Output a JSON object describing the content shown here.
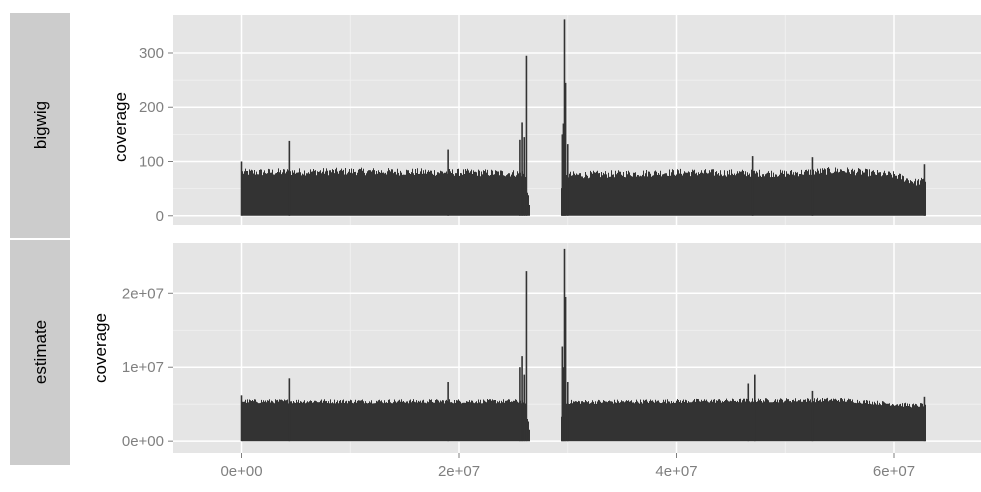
{
  "chart_data": {
    "type": "area",
    "x_ticks": [
      0,
      20000000,
      40000000,
      60000000
    ],
    "x_tick_labels": [
      "0e+00",
      "2e+07",
      "4e+07",
      "6e+07"
    ],
    "xlim": [
      -6300000,
      68000000
    ],
    "grid": true,
    "panels": [
      {
        "strip_label": "bigwig",
        "ylabel": "coverage",
        "ylim": [
          -17,
          370
        ],
        "y_ticks": [
          0,
          100,
          200,
          300
        ],
        "y_tick_labels": [
          "0",
          "100",
          "200",
          "300"
        ],
        "baseline": 80,
        "baseline_noise": 7,
        "shape": [
          {
            "x": 0,
            "y": 80
          },
          {
            "x": 10000000,
            "y": 82
          },
          {
            "x": 20000000,
            "y": 80
          },
          {
            "x": 26000000,
            "y": 78
          },
          {
            "x": 26400000,
            "y": 30
          },
          {
            "x": 26500000,
            "y": 0
          },
          {
            "x": 29300000,
            "y": 0
          },
          {
            "x": 29400000,
            "y": 60
          },
          {
            "x": 30000000,
            "y": 75
          },
          {
            "x": 40000000,
            "y": 80
          },
          {
            "x": 50000000,
            "y": 78
          },
          {
            "x": 55000000,
            "y": 84
          },
          {
            "x": 60000000,
            "y": 75
          },
          {
            "x": 62000000,
            "y": 62
          },
          {
            "x": 62900000,
            "y": 65
          }
        ],
        "spikes": [
          {
            "x": 0,
            "y": 100
          },
          {
            "x": 4400000,
            "y": 138
          },
          {
            "x": 19000000,
            "y": 122
          },
          {
            "x": 25600000,
            "y": 140
          },
          {
            "x": 25800000,
            "y": 172
          },
          {
            "x": 26000000,
            "y": 145
          },
          {
            "x": 26200000,
            "y": 295
          },
          {
            "x": 29500000,
            "y": 150
          },
          {
            "x": 29600000,
            "y": 170
          },
          {
            "x": 29700000,
            "y": 362
          },
          {
            "x": 29800000,
            "y": 245
          },
          {
            "x": 30000000,
            "y": 132
          },
          {
            "x": 47000000,
            "y": 110
          },
          {
            "x": 52500000,
            "y": 108
          },
          {
            "x": 62800000,
            "y": 95
          }
        ]
      },
      {
        "strip_label": "estimate",
        "ylabel": "coverage",
        "ylim": [
          -1600000,
          26800000
        ],
        "y_ticks": [
          0,
          10000000,
          20000000
        ],
        "y_tick_labels": [
          "0e+00",
          "1e+07",
          "2e+07"
        ],
        "baseline": 5400000,
        "baseline_noise": 300000,
        "shape": [
          {
            "x": 0,
            "y": 5400000
          },
          {
            "x": 26000000,
            "y": 5400000
          },
          {
            "x": 26400000,
            "y": 2000000
          },
          {
            "x": 26500000,
            "y": 0
          },
          {
            "x": 29300000,
            "y": 0
          },
          {
            "x": 29400000,
            "y": 4500000
          },
          {
            "x": 30000000,
            "y": 5300000
          },
          {
            "x": 55000000,
            "y": 5600000
          },
          {
            "x": 62000000,
            "y": 4800000
          },
          {
            "x": 62900000,
            "y": 5000000
          }
        ],
        "spikes": [
          {
            "x": 0,
            "y": 6200000
          },
          {
            "x": 4400000,
            "y": 8500000
          },
          {
            "x": 19000000,
            "y": 8000000
          },
          {
            "x": 25600000,
            "y": 10000000
          },
          {
            "x": 25800000,
            "y": 11500000
          },
          {
            "x": 26000000,
            "y": 9000000
          },
          {
            "x": 26200000,
            "y": 23000000
          },
          {
            "x": 29500000,
            "y": 12800000
          },
          {
            "x": 29600000,
            "y": 10000000
          },
          {
            "x": 29700000,
            "y": 26000000
          },
          {
            "x": 29800000,
            "y": 19500000
          },
          {
            "x": 30000000,
            "y": 8000000
          },
          {
            "x": 46600000,
            "y": 7800000
          },
          {
            "x": 47200000,
            "y": 9000000
          },
          {
            "x": 52500000,
            "y": 6800000
          },
          {
            "x": 62800000,
            "y": 6000000
          }
        ]
      }
    ]
  },
  "colors": {
    "panel_bg": "#e5e5e5",
    "strip_bg": "#cccccc",
    "grid_major": "#ffffff",
    "grid_minor": "#f2f2f2",
    "fill": "#333333",
    "tick_text": "#7f7f7f",
    "label_text": "#000000"
  }
}
